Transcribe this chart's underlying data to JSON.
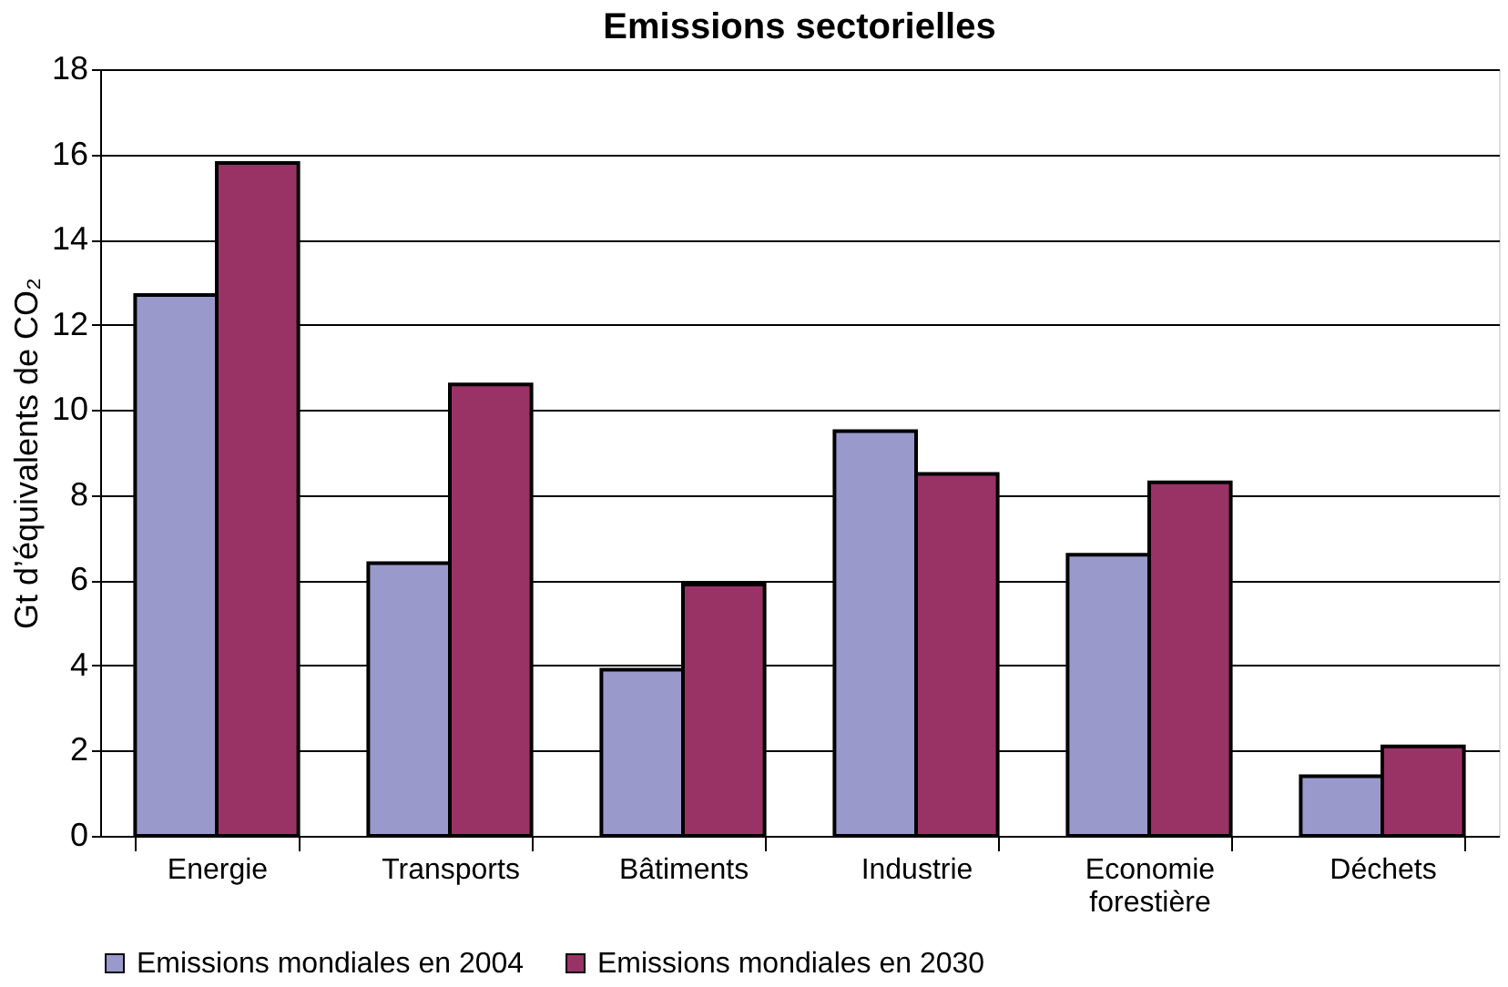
{
  "chart_data": {
    "type": "bar",
    "title": "Emissions sectorielles",
    "ylabel": "Gt d’équivalents de CO₂",
    "categories": [
      "Energie",
      "Transports",
      "Bâtiments",
      "Industrie",
      "Economie forestière",
      "Déchets"
    ],
    "series": [
      {
        "name": "Emissions mondiales en 2004",
        "color": "#9999cc",
        "values": [
          12.7,
          6.4,
          3.9,
          9.5,
          6.6,
          1.4
        ]
      },
      {
        "name": "Emissions mondiales en 2030",
        "color": "#993366",
        "values": [
          15.8,
          10.6,
          5.9,
          8.5,
          8.3,
          2.1
        ]
      }
    ],
    "ylim": [
      0,
      18
    ],
    "yticks": [
      0,
      2,
      4,
      6,
      8,
      10,
      12,
      14,
      16,
      18
    ],
    "grid": "y",
    "legend": "bottom"
  }
}
